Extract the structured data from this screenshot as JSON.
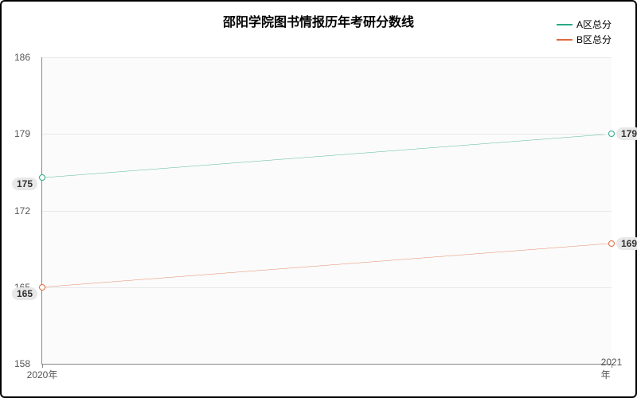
{
  "chart": {
    "type": "line",
    "title": "邵阳学院图书情报历年考研分数线",
    "title_fontsize": 16,
    "plot_background": "#fbfbfb",
    "outer_border_color": "#000000",
    "grid_color": "#e8e8e8",
    "axis_color": "#888888",
    "label_fontsize": 12,
    "ylim": [
      158,
      186
    ],
    "yticks": [
      158,
      165,
      172,
      179,
      186
    ],
    "x_categories": [
      "2020年",
      "2021年"
    ],
    "series": [
      {
        "name": "A区总分",
        "color": "#2aa987",
        "values": [
          175,
          179
        ]
      },
      {
        "name": "B区总分",
        "color": "#e06a3d",
        "values": [
          165,
          169
        ]
      }
    ],
    "point_label_bg": "#e8e8e8"
  }
}
